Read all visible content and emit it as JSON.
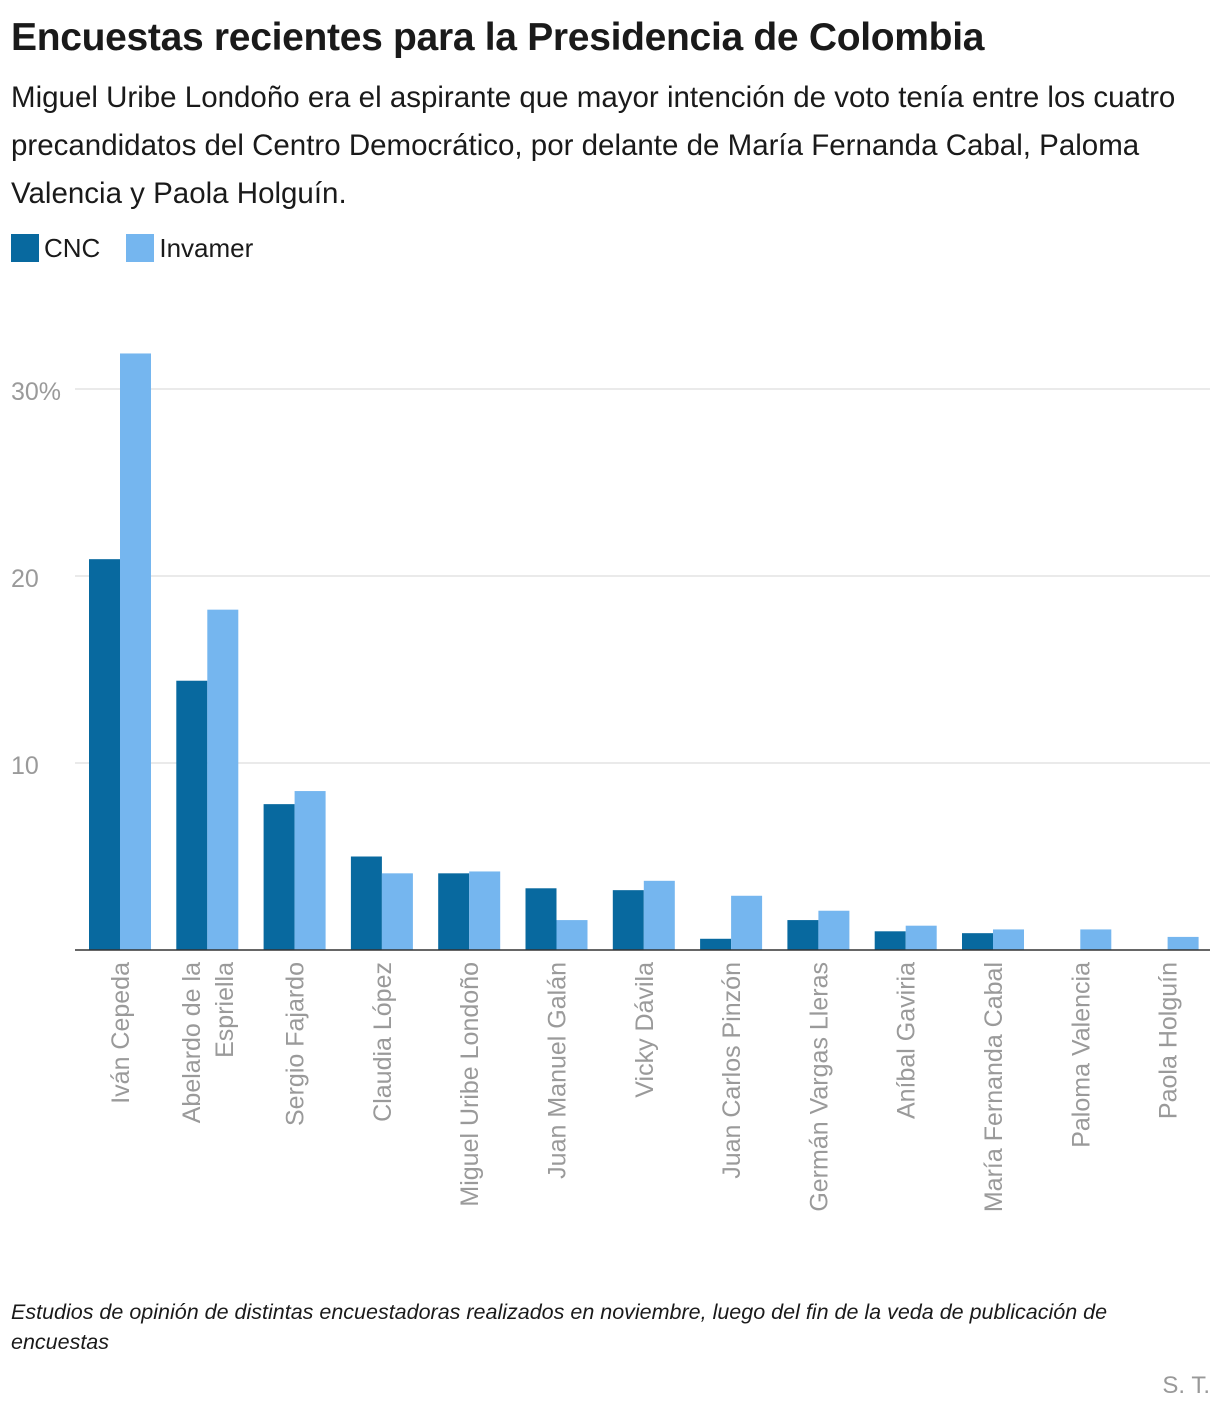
{
  "title": "Encuestas recientes para la Presidencia de Colombia",
  "subtitle": "Miguel Uribe Londoño era el aspirante que mayor intención de voto tenía entre los cuatro precandidatos del Centro Democrático, por delante de María Fernanda Cabal, Paloma Valencia y Paola Holguín.",
  "note": "Estudios de opinión de distintas encuestadoras realizados en noviembre, luego del fin de la veda de publicación de encuestas",
  "credit": "S. T.",
  "colors": {
    "CNC": "#08699f",
    "Invamer": "#75b6ef",
    "grid": "#dddddd",
    "axis": "#333333",
    "tick_text": "#9a9a9a"
  },
  "chart_data": {
    "type": "bar",
    "categories": [
      [
        "Iván Cepeda"
      ],
      [
        "Abelardo de la",
        "Espriella"
      ],
      [
        "Sergio Fajardo"
      ],
      [
        "Claudia López"
      ],
      [
        "Miguel Uribe Londoño"
      ],
      [
        "Juan Manuel Galán"
      ],
      [
        "Vicky Dávila"
      ],
      [
        "Juan Carlos Pinzón"
      ],
      [
        "Germán Vargas Lleras"
      ],
      [
        "Aníbal Gaviria"
      ],
      [
        "María Fernanda Cabal"
      ],
      [
        "Paloma Valencia"
      ],
      [
        "Paola Holguín"
      ]
    ],
    "series": [
      {
        "name": "CNC",
        "color": "#08699f",
        "values": [
          20.9,
          14.4,
          7.8,
          5.0,
          4.1,
          3.3,
          3.2,
          0.6,
          1.6,
          1.0,
          0.9,
          null,
          null
        ]
      },
      {
        "name": "Invamer",
        "color": "#75b6ef",
        "values": [
          31.9,
          18.2,
          8.5,
          4.1,
          4.2,
          1.6,
          3.7,
          2.9,
          2.1,
          1.3,
          1.1,
          1.1,
          0.7
        ]
      }
    ],
    "yticks": [
      10,
      20,
      30
    ],
    "ytick_labels": [
      "10",
      "20",
      "30%"
    ],
    "ylim": [
      0,
      32.5
    ],
    "xlabel": "",
    "ylabel": "",
    "legend": "top-left",
    "grid": true
  }
}
